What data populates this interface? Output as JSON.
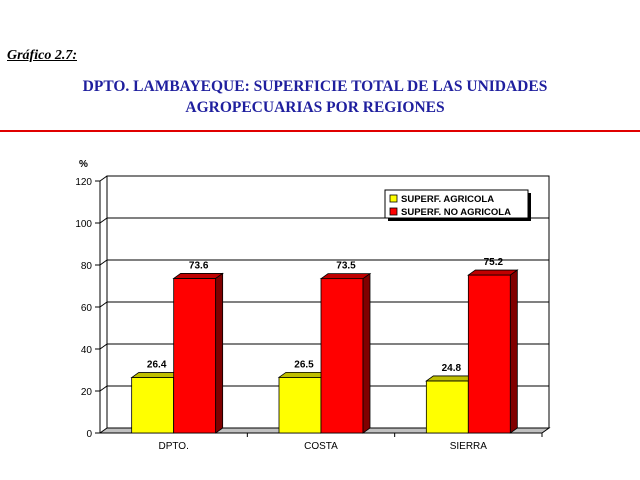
{
  "header": {
    "figure_label": "Gráfico 2.7:",
    "title_line1": "DPTO. LAMBAYEQUE: SUPERFICIE TOTAL DE LAS UNIDADES",
    "title_line2": "AGROPECUARIAS POR REGIONES"
  },
  "colors": {
    "title": "#1f1f9e",
    "rule": "#e00000",
    "agricola": "#ffff00",
    "no_agricola": "#ff0000"
  },
  "chart_data": {
    "type": "bar",
    "ylabel": "%",
    "ylim": [
      0,
      120
    ],
    "yticks": [
      "0",
      "20",
      "40",
      "60",
      "80",
      "100",
      "120"
    ],
    "categories": [
      "DPTO.",
      "COSTA",
      "SIERRA"
    ],
    "series": [
      {
        "name": "SUPERF. AGRICOLA",
        "values": [
          26.4,
          26.5,
          24.8
        ],
        "labels": [
          "26.4",
          "26.5",
          "24.8"
        ],
        "color": "#ffff00"
      },
      {
        "name": "SUPERF. NO AGRICOLA",
        "values": [
          73.6,
          73.5,
          75.2
        ],
        "labels": [
          "73.6",
          "73.5",
          "75.2"
        ],
        "color": "#ff0000"
      }
    ],
    "grid": true,
    "legend_position": "top-right",
    "style": "3d-columns"
  }
}
